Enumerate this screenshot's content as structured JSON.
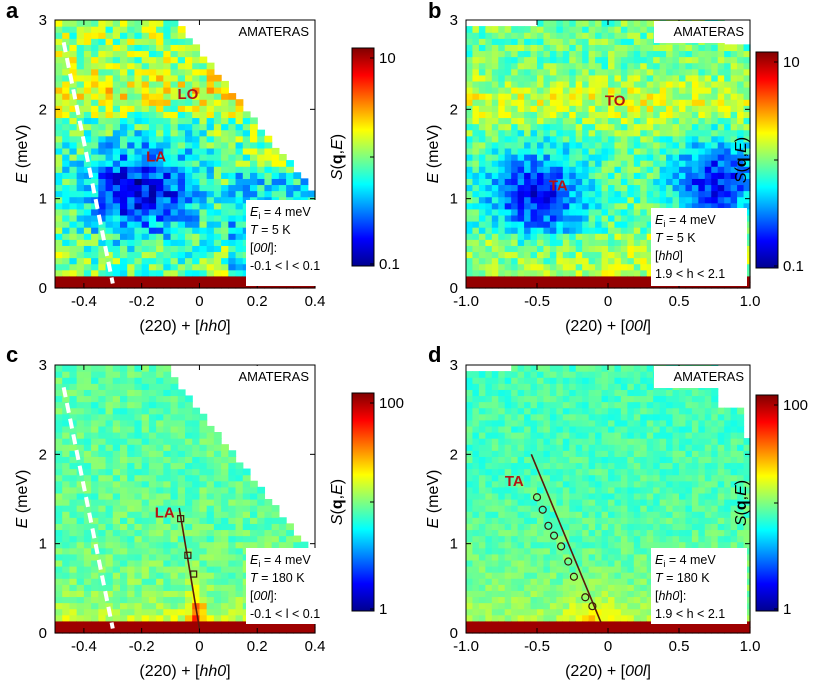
{
  "panels": [
    {
      "letter": "a",
      "instrument": "AMATERAS",
      "xlabel": "(220) + [hh0]",
      "ylabel": "E (meV)",
      "xlim": [
        -0.5,
        0.4
      ],
      "ylim": [
        0,
        3
      ],
      "xticks": [
        -0.4,
        -0.2,
        0,
        0.2,
        0.4
      ],
      "xtick_labels": [
        "-0.4",
        "-0.2",
        "0",
        "0.2",
        "0.4"
      ],
      "yticks": [
        0,
        1,
        2,
        3
      ],
      "ytick_labels": [
        "0",
        "1",
        "2",
        "3"
      ],
      "colorbar_label": "S(q,E)",
      "colorbar_ticks": [
        "10",
        "1",
        "0.1"
      ],
      "info": [
        "Ei = 4 meV",
        "T = 5 K",
        "[00l]:",
        "-0.1 < l < 0.1"
      ],
      "mode_labels": [
        {
          "text": "LO",
          "q": -0.04,
          "E": 2.17
        },
        {
          "text": "LA",
          "q": -0.15,
          "E": 1.47
        }
      ],
      "fit_line": null,
      "points": []
    },
    {
      "letter": "b",
      "instrument": "AMATERAS",
      "xlabel": "(220) + [00l]",
      "ylabel": "E (meV)",
      "xlim": [
        -1.0,
        1.0
      ],
      "ylim": [
        0,
        3
      ],
      "xticks": [
        -1.0,
        -0.5,
        0,
        0.5,
        1.0
      ],
      "xtick_labels": [
        "-1.0",
        "-0.5",
        "0",
        "0.5",
        "1.0"
      ],
      "yticks": [
        0,
        1,
        2,
        3
      ],
      "ytick_labels": [
        "0",
        "1",
        "2",
        "3"
      ],
      "colorbar_label": "S(q,E)",
      "colorbar_ticks": [
        "10",
        "1",
        "0.1"
      ],
      "info": [
        "Ei = 4 meV",
        "T = 5 K",
        "[hh0]",
        "1.9 < h < 2.1"
      ],
      "mode_labels": [
        {
          "text": "TO",
          "q": 0.05,
          "E": 2.1
        },
        {
          "text": "TA",
          "q": -0.35,
          "E": 1.15
        }
      ],
      "fit_line": null,
      "points": []
    },
    {
      "letter": "c",
      "instrument": "AMATERAS",
      "xlabel": "(220) + [hh0]",
      "ylabel": "E (meV)",
      "xlim": [
        -0.5,
        0.4
      ],
      "ylim": [
        0,
        3
      ],
      "xticks": [
        -0.4,
        -0.2,
        0,
        0.2,
        0.4
      ],
      "xtick_labels": [
        "-0.4",
        "-0.2",
        "0",
        "0.2",
        "0.4"
      ],
      "yticks": [
        0,
        1,
        2,
        3
      ],
      "ytick_labels": [
        "0",
        "1",
        "2",
        "3"
      ],
      "colorbar_label": "S(q,E)",
      "colorbar_ticks": [
        "100",
        "10",
        "1"
      ],
      "info": [
        "Ei = 4 meV",
        "T = 180 K",
        "[00l]:",
        "-0.1 < l < 0.1"
      ],
      "mode_labels": [
        {
          "text": "LA",
          "q": -0.12,
          "E": 1.35
        }
      ],
      "fit_line": {
        "q": [
          -0.07,
          0.0
        ],
        "E": [
          1.4,
          0.05
        ]
      },
      "points": [
        {
          "q": -0.065,
          "E": 1.28
        },
        {
          "q": -0.04,
          "E": 0.87
        },
        {
          "q": -0.02,
          "E": 0.66
        }
      ]
    },
    {
      "letter": "d",
      "instrument": "AMATERAS",
      "xlabel": "(220) + [00l]",
      "ylabel": "E (meV)",
      "xlim": [
        -1.0,
        1.0
      ],
      "ylim": [
        0,
        3
      ],
      "xticks": [
        -1.0,
        -0.5,
        0,
        0.5,
        1.0
      ],
      "xtick_labels": [
        "-1.0",
        "-0.5",
        "0",
        "0.5",
        "1.0"
      ],
      "yticks": [
        0,
        1,
        2,
        3
      ],
      "ytick_labels": [
        "0",
        "1",
        "2",
        "3"
      ],
      "colorbar_label": "S(q,E)",
      "colorbar_ticks": [
        "100",
        "10",
        "1"
      ],
      "info": [
        "Ei = 4 meV",
        "T = 180 K",
        "[hh0]:",
        "1.9 < h < 2.1"
      ],
      "mode_labels": [
        {
          "text": "TA",
          "q": -0.66,
          "E": 1.7
        }
      ],
      "fit_line": {
        "q": [
          -0.54,
          -0.05
        ],
        "E": [
          2.0,
          0.12
        ]
      },
      "points": [
        {
          "q": -0.5,
          "E": 1.52
        },
        {
          "q": -0.46,
          "E": 1.38
        },
        {
          "q": -0.42,
          "E": 1.2
        },
        {
          "q": -0.38,
          "E": 1.09
        },
        {
          "q": -0.33,
          "E": 0.97
        },
        {
          "q": -0.28,
          "E": 0.8
        },
        {
          "q": -0.24,
          "E": 0.63
        },
        {
          "q": -0.16,
          "E": 0.4
        },
        {
          "q": -0.11,
          "E": 0.3
        }
      ]
    }
  ],
  "chart_data": [
    {
      "type": "heatmap",
      "title": "",
      "xlabel": "(220) + [hh0]",
      "ylabel": "E (meV)",
      "xlim": [
        -0.5,
        0.4
      ],
      "ylim": [
        0,
        3
      ],
      "colorbar": "S(q,E)",
      "color_range": [
        0.1,
        10
      ],
      "color_scale": "log",
      "annotations": [
        "LO",
        "LA",
        "AMATERAS"
      ]
    },
    {
      "type": "heatmap",
      "title": "",
      "xlabel": "(220) + [00l]",
      "ylabel": "E (meV)",
      "xlim": [
        -1.0,
        1.0
      ],
      "ylim": [
        0,
        3
      ],
      "colorbar": "S(q,E)",
      "color_range": [
        0.1,
        10
      ],
      "color_scale": "log",
      "annotations": [
        "TO",
        "TA",
        "AMATERAS"
      ]
    },
    {
      "type": "heatmap",
      "title": "",
      "xlabel": "(220) + [hh0]",
      "ylabel": "E (meV)",
      "xlim": [
        -0.5,
        0.4
      ],
      "ylim": [
        0,
        3
      ],
      "colorbar": "S(q,E)",
      "color_range": [
        1,
        100
      ],
      "color_scale": "log",
      "annotations": [
        "LA",
        "AMATERAS"
      ]
    },
    {
      "type": "heatmap",
      "title": "",
      "xlabel": "(220) + [00l]",
      "ylabel": "E (meV)",
      "xlim": [
        -1.0,
        1.0
      ],
      "ylim": [
        0,
        3
      ],
      "colorbar": "S(q,E)",
      "color_range": [
        1,
        100
      ],
      "color_scale": "log",
      "annotations": [
        "TA",
        "AMATERAS"
      ]
    }
  ],
  "colors": {
    "label_red": "#b41414",
    "fit_line": "#5a1a0a",
    "elastic_line": "#8b0000"
  }
}
